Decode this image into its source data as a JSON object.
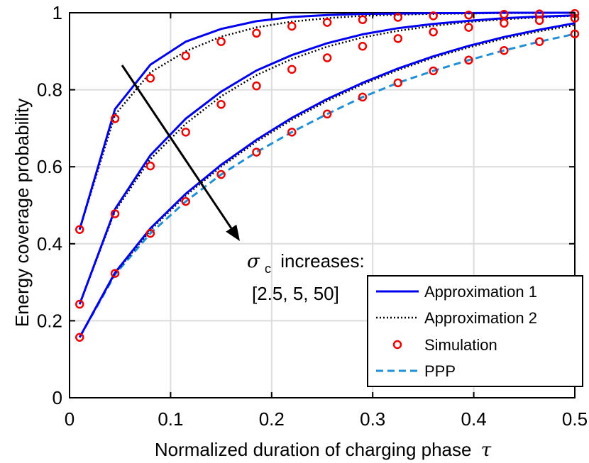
{
  "chart_data": {
    "type": "line",
    "xlabel": "Normalized duration of charging phase",
    "xlabel_symbol": "τ",
    "ylabel": "Energy coverage probability",
    "xlim": [
      0,
      0.5
    ],
    "ylim": [
      0,
      1
    ],
    "xticks": [
      0,
      0.1,
      0.2,
      0.3,
      0.4,
      0.5
    ],
    "yticks": [
      0,
      0.2,
      0.4,
      0.6,
      0.8,
      1
    ],
    "xtick_labels": [
      "0",
      "0.1",
      "0.2",
      "0.3",
      "0.4",
      "0.5"
    ],
    "ytick_labels": [
      "0",
      "0.2",
      "0.4",
      "0.6",
      "0.8",
      "1"
    ],
    "grid": true,
    "legend_position": "bottom-right",
    "annotation": {
      "symbol": "σ",
      "subscript": "c",
      "text": "increases:",
      "values": "[2.5, 5, 50]"
    },
    "x": [
      0.01,
      0.045,
      0.08,
      0.115,
      0.15,
      0.185,
      0.22,
      0.255,
      0.29,
      0.325,
      0.36,
      0.395,
      0.43,
      0.465,
      0.5
    ],
    "series": [
      {
        "name": "Approximation 1",
        "style": "solid",
        "color": "#0000ee",
        "curves": [
          [
            0.437,
            0.75,
            0.865,
            0.925,
            0.958,
            0.978,
            0.989,
            0.994,
            0.997,
            0.998,
            0.999,
            0.999,
            1.0,
            1.0,
            1.0
          ],
          [
            0.243,
            0.49,
            0.63,
            0.725,
            0.795,
            0.85,
            0.89,
            0.921,
            0.944,
            0.96,
            0.971,
            0.979,
            0.986,
            0.99,
            0.993
          ],
          [
            0.157,
            0.325,
            0.44,
            0.53,
            0.605,
            0.67,
            0.727,
            0.776,
            0.818,
            0.855,
            0.887,
            0.914,
            0.937,
            0.956,
            0.973
          ]
        ]
      },
      {
        "name": "Approximation 2",
        "style": "dotted",
        "color": "#000000",
        "curves": [
          [
            0.437,
            0.735,
            0.845,
            0.9,
            0.938,
            0.962,
            0.977,
            0.986,
            0.992,
            0.995,
            0.997,
            0.998,
            0.999,
            0.999,
            1.0
          ],
          [
            0.243,
            0.485,
            0.62,
            0.712,
            0.783,
            0.838,
            0.88,
            0.912,
            0.936,
            0.953,
            0.966,
            0.976,
            0.983,
            0.988,
            0.992
          ],
          [
            0.157,
            0.323,
            0.435,
            0.525,
            0.6,
            0.665,
            0.722,
            0.771,
            0.814,
            0.851,
            0.883,
            0.91,
            0.933,
            0.952,
            0.968
          ]
        ]
      },
      {
        "name": "Simulation",
        "style": "markers",
        "color": "#ee0000",
        "curves": [
          [
            0.437,
            0.725,
            0.83,
            0.888,
            0.925,
            0.947,
            0.965,
            0.975,
            0.982,
            0.988,
            0.992,
            0.994,
            0.996,
            0.997,
            0.998
          ],
          [
            0.243,
            0.478,
            0.602,
            0.69,
            0.762,
            0.81,
            0.853,
            0.883,
            0.913,
            0.933,
            0.95,
            0.962,
            0.973,
            0.98,
            0.986
          ],
          [
            0.157,
            0.323,
            0.427,
            0.51,
            0.58,
            0.638,
            0.69,
            0.737,
            0.781,
            0.818,
            0.849,
            0.877,
            0.902,
            0.925,
            0.945
          ]
        ]
      },
      {
        "name": "PPP",
        "style": "dashed",
        "color": "#1f8fd6",
        "curves": [
          [
            0.157,
            0.32,
            0.427,
            0.51,
            0.58,
            0.638,
            0.69,
            0.737,
            0.781,
            0.818,
            0.849,
            0.877,
            0.902,
            0.925,
            0.945
          ]
        ]
      }
    ]
  }
}
